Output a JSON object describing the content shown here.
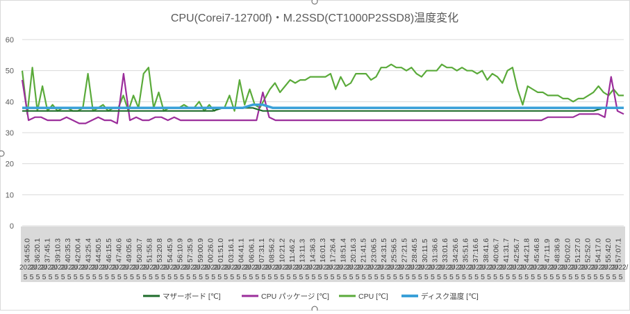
{
  "chart_data": {
    "type": "line",
    "title": "CPU(Corei7-12700f)・M.2SSD(CT1000P2SSD8)温度変化",
    "xlabel": "",
    "ylabel": "",
    "ylim": [
      0,
      60
    ],
    "yticks": [
      "0",
      "10",
      "20",
      "30",
      "40",
      "50",
      "60"
    ],
    "grid": true,
    "legend_position": "bottom",
    "x_time_labels": [
      "34:55.0",
      "36:20.1",
      "37:45.1",
      "39:10.3",
      "40:35.3",
      "42:00.4",
      "43:25.4",
      "44:50.5",
      "46:15.5",
      "47:40.6",
      "49:05.6",
      "50:30.7",
      "51:55.8",
      "53:20.8",
      "54:45.9",
      "56:10.9",
      "57:35.9",
      "59:00.9",
      "00:26.0",
      "01:51.0",
      "03:16.1",
      "04:41.1",
      "06:06.1",
      "07:31.1",
      "08:56.2",
      "10:21.2",
      "11:46.2",
      "13:11.3",
      "14:36.3",
      "16:01.3",
      "17:26.4",
      "18:51.4",
      "20:16.3",
      "21:41.5",
      "23:06.5",
      "24:31.5",
      "25:56.5",
      "27:21.5",
      "28:46.5",
      "30:11.5",
      "31:36.6",
      "33:01.6",
      "34:26.6",
      "35:51.6",
      "37:16.6",
      "38:41.6",
      "40:06.7",
      "41:31.7",
      "42:56.7",
      "44:21.8",
      "45:46.8",
      "47:11.9",
      "48:36.9",
      "50:02.0",
      "51:27.0",
      "52:52.0",
      "54:17.0",
      "55:42.0",
      "57:07.1"
    ],
    "x_date_label": "2022/",
    "x_row_label": "5",
    "series": [
      {
        "name": "マザーボード [℃]",
        "color": "#1e6b2a",
        "values": [
          37,
          37,
          37,
          37,
          37,
          37,
          37,
          37,
          37,
          37,
          37,
          37,
          37,
          37,
          37,
          37,
          37,
          37,
          37,
          37,
          38,
          38,
          38,
          38,
          37,
          37,
          37,
          37,
          37,
          37,
          37,
          37,
          37,
          37,
          37,
          37,
          37,
          37,
          37,
          37,
          37,
          37,
          37,
          37,
          37,
          37,
          37,
          37,
          37,
          37,
          37,
          37,
          37,
          37,
          37,
          37,
          37,
          37,
          38,
          38,
          38
        ]
      },
      {
        "name": "CPU パッケージ [℃]",
        "color": "#9b2d9b",
        "values": [
          47,
          34,
          35,
          35,
          34,
          34,
          34,
          35,
          34,
          33,
          33,
          34,
          35,
          34,
          34,
          33,
          49,
          34,
          35,
          34,
          34,
          35,
          35,
          34,
          35,
          34,
          34,
          34,
          34,
          34,
          34,
          34,
          34,
          34,
          34,
          34,
          34,
          34,
          43,
          35,
          34,
          34,
          34,
          34,
          34,
          34,
          34,
          34,
          34,
          34,
          34,
          34,
          34,
          34,
          34,
          34,
          34,
          34,
          34,
          34,
          34,
          34,
          34,
          34,
          34,
          34,
          34,
          34,
          34,
          34,
          34,
          34,
          34,
          34,
          34,
          34,
          34,
          34,
          34,
          34,
          34,
          34,
          34,
          35,
          35,
          35,
          35,
          35,
          36,
          36,
          36,
          36,
          35,
          48,
          37,
          36
        ]
      },
      {
        "name": "CPU [℃]",
        "color": "#5aaa3a",
        "values": [
          50,
          36,
          51,
          37,
          45,
          37,
          39,
          37,
          38,
          38,
          37,
          37,
          38,
          49,
          37,
          38,
          39,
          37,
          38,
          38,
          42,
          37,
          42,
          38,
          49,
          51,
          38,
          43,
          37,
          38,
          38,
          38,
          39,
          38,
          38,
          40,
          37,
          39,
          37,
          38,
          38,
          42,
          37,
          47,
          39,
          44,
          39,
          38,
          41,
          44,
          46,
          43,
          45,
          47,
          46,
          47,
          47,
          48,
          48,
          48,
          48,
          49,
          44,
          48,
          45,
          46,
          49,
          49,
          49,
          47,
          48,
          51,
          51,
          52,
          51,
          51,
          50,
          51,
          49,
          48,
          50,
          50,
          50,
          52,
          51,
          51,
          50,
          51,
          50,
          50,
          49,
          50,
          47,
          49,
          48,
          46,
          50,
          51,
          44,
          39,
          45,
          44,
          43,
          43,
          42,
          42,
          42,
          41,
          41,
          40,
          41,
          41,
          42,
          43,
          45,
          43,
          42,
          44,
          42,
          42
        ]
      },
      {
        "name": "ディスク温度 [℃]",
        "color": "#3aa0d8",
        "values": [
          38,
          38,
          38,
          38,
          38,
          38,
          38,
          38,
          38,
          38,
          38,
          38,
          38,
          38,
          38,
          38,
          38,
          38,
          38,
          38,
          38,
          38,
          38,
          39,
          39,
          38,
          38,
          38,
          38,
          38,
          38,
          38,
          38,
          38,
          38,
          38,
          38,
          38,
          38,
          38,
          38,
          38,
          38,
          38,
          38,
          38,
          38,
          38,
          38,
          38,
          38,
          38,
          38,
          38,
          38,
          38,
          38,
          38,
          38,
          38,
          38
        ]
      }
    ]
  }
}
